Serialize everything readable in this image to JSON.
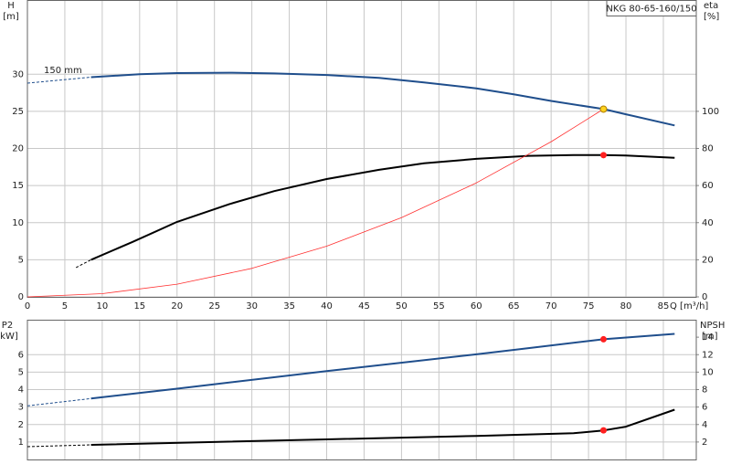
{
  "chart_data": [
    {
      "type": "line",
      "title": "NKG 80-65-160/150",
      "xlabel": "Q [m³/h]",
      "ylabel": "H",
      "yunit": "[m]",
      "y2label": "eta",
      "y2unit": "[%]",
      "annotations": [
        "150 mm"
      ],
      "xlim": [
        0,
        89.4
      ],
      "xticks": [
        0,
        5,
        10,
        15,
        20,
        25,
        30,
        35,
        40,
        45,
        50,
        55,
        60,
        65,
        70,
        75,
        80,
        85
      ],
      "ylim": [
        0,
        40
      ],
      "yticks": [
        0,
        5,
        10,
        15,
        20,
        25,
        30
      ],
      "y2lim": [
        0,
        160
      ],
      "y2ticks": [
        0,
        20,
        40,
        60,
        80,
        100
      ],
      "grid": true,
      "series": [
        {
          "color": "#1f4e8c",
          "axis": "y",
          "width": 2,
          "dashed": false,
          "x": [
            8.5,
            15,
            20,
            27,
            33,
            40,
            47,
            53,
            60,
            65,
            70,
            77,
            80,
            86.5
          ],
          "values": [
            29.6,
            30.0,
            30.15,
            30.2,
            30.1,
            29.9,
            29.5,
            28.9,
            28.1,
            27.3,
            26.4,
            25.3,
            24.6,
            23.1
          ]
        },
        {
          "color": "#1f4e8c",
          "axis": "y",
          "width": 1,
          "dashed": true,
          "x": [
            0,
            8.5
          ],
          "values": [
            28.8,
            29.6
          ]
        },
        {
          "color": "#000000",
          "axis": "y2",
          "width": 2,
          "dashed": false,
          "x": [
            8.5,
            14,
            20,
            27,
            33,
            40,
            47,
            53,
            60,
            67,
            73,
            77,
            80,
            86.5
          ],
          "values": [
            20,
            29.5,
            40.4,
            50,
            57,
            63.5,
            68.5,
            72,
            74.4,
            76,
            76.4,
            76.4,
            76.2,
            75
          ]
        },
        {
          "color": "#000000",
          "axis": "y2",
          "width": 1,
          "dashed": true,
          "x": [
            6.5,
            8.5
          ],
          "values": [
            15.8,
            20
          ]
        },
        {
          "color": "#ff3030",
          "axis": "y",
          "width": 0.8,
          "dashed": false,
          "x": [
            0,
            10,
            20,
            30,
            40,
            50,
            60,
            70,
            77
          ],
          "values": [
            0,
            0.43,
            1.71,
            3.84,
            6.83,
            10.67,
            15.36,
            20.91,
            25.3
          ]
        }
      ],
      "points": [
        {
          "x": 77,
          "value": 25.3,
          "axis": "y",
          "color": "#ffd21f"
        },
        {
          "x": 77,
          "value": 76.4,
          "axis": "y2",
          "color": "#ff2020"
        }
      ]
    },
    {
      "type": "line",
      "ylabel": "P2",
      "yunit": "[kW]",
      "y2label": "NPSH",
      "y2unit": "[m]",
      "xlim": [
        0,
        89.4
      ],
      "ylim": [
        0,
        8
      ],
      "yticks": [
        1,
        2,
        3,
        4,
        5,
        6
      ],
      "y2lim": [
        0,
        16
      ],
      "y2ticks": [
        2,
        4,
        6,
        8,
        10,
        12,
        14
      ],
      "grid": true,
      "series": [
        {
          "color": "#1f4e8c",
          "axis": "y",
          "width": 2,
          "dashed": false,
          "x": [
            8.5,
            20,
            40,
            60,
            77,
            86.5
          ],
          "values": [
            3.49,
            4.05,
            5.06,
            6.02,
            6.88,
            7.19
          ]
        },
        {
          "color": "#1f4e8c",
          "axis": "y",
          "width": 1,
          "dashed": true,
          "x": [
            0,
            8.5
          ],
          "values": [
            3.07,
            3.49
          ]
        },
        {
          "color": "#000000",
          "axis": "y2",
          "width": 2,
          "dashed": false,
          "x": [
            8.5,
            40,
            60,
            73,
            77,
            80,
            86.5
          ],
          "values": [
            1.67,
            2.3,
            2.7,
            3.0,
            3.33,
            3.75,
            5.7
          ]
        },
        {
          "color": "#000000",
          "axis": "y2",
          "width": 1,
          "dashed": true,
          "x": [
            0,
            8.5
          ],
          "values": [
            1.46,
            1.67
          ]
        }
      ],
      "points": [
        {
          "x": 77,
          "value": 6.88,
          "axis": "y",
          "color": "#ff2020"
        },
        {
          "x": 77,
          "value": 3.33,
          "axis": "y2",
          "color": "#ff2020"
        }
      ]
    }
  ]
}
